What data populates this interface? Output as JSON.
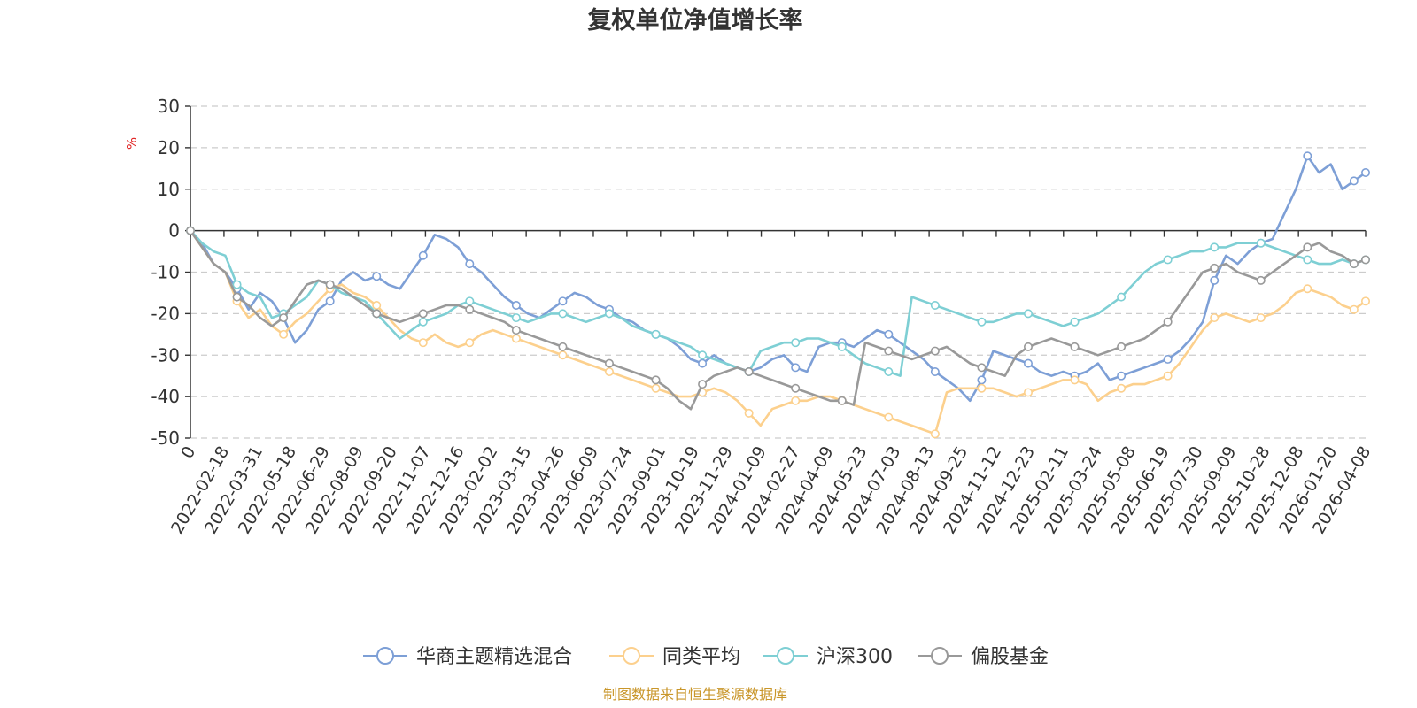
{
  "chart_data": {
    "type": "line",
    "title": "复权单位净值增长率",
    "ylabel": "%",
    "ylim": [
      -50,
      30
    ],
    "yticks": [
      30,
      20,
      10,
      0,
      -10,
      -20,
      -30,
      -40,
      -50
    ],
    "x_tick_labels": [
      "0",
      "2022-02-18",
      "2022-03-31",
      "2022-05-18",
      "2022-06-29",
      "2022-08-09",
      "2022-09-20",
      "2022-11-07",
      "2022-12-16",
      "2023-02-02",
      "2023-03-15",
      "2023-04-26",
      "2023-06-09",
      "2023-07-24",
      "2023-09-01",
      "2023-10-19",
      "2023-11-29",
      "2024-01-09",
      "2024-02-27",
      "2024-04-09",
      "2024-05-23",
      "2024-07-03",
      "2024-08-13",
      "2024-09-25",
      "2024-11-12",
      "2024-12-23",
      "2025-02-11",
      "2025-03-24",
      "2025-05-08",
      "2025-06-19",
      "2025-07-30",
      "2025-09-09",
      "2025-10-28",
      "2025-12-08",
      "2026-01-20",
      "2026-04-08"
    ],
    "grid": true,
    "legend_position": "bottom",
    "source_note": "制图数据来自恒生聚源数据库",
    "series": [
      {
        "name": "华商主题精选混合",
        "color": "#7d9fd6",
        "values": [
          0,
          -3,
          -8,
          -10,
          -14,
          -19,
          -15,
          -17,
          -21,
          -27,
          -24,
          -19,
          -17,
          -12,
          -10,
          -12,
          -11,
          -13,
          -14,
          -10,
          -6,
          -1,
          -2,
          -4,
          -8,
          -10,
          -13,
          -16,
          -18,
          -20,
          -21,
          -19,
          -17,
          -15,
          -16,
          -18,
          -19,
          -21,
          -22,
          -24,
          -25,
          -26,
          -28,
          -31,
          -32,
          -30,
          -32,
          -33,
          -34,
          -33,
          -31,
          -30,
          -33,
          -34,
          -28,
          -27,
          -27,
          -28,
          -26,
          -24,
          -25,
          -27,
          -29,
          -31,
          -34,
          -36,
          -38,
          -41,
          -36,
          -29,
          -30,
          -31,
          -32,
          -34,
          -35,
          -34,
          -35,
          -34,
          -32,
          -36,
          -35,
          -34,
          -33,
          -32,
          -31,
          -29,
          -26,
          -22,
          -12,
          -6,
          -8,
          -5,
          -3,
          -2,
          4,
          10,
          18,
          14,
          16,
          10,
          12,
          14
        ]
      },
      {
        "name": "同类平均",
        "color": "#fcd08d",
        "values": [
          0,
          -4,
          -8,
          -10,
          -17,
          -21,
          -19,
          -23,
          -25,
          -22,
          -20,
          -17,
          -14,
          -13,
          -15,
          -16,
          -18,
          -21,
          -24,
          -26,
          -27,
          -25,
          -27,
          -28,
          -27,
          -25,
          -24,
          -25,
          -26,
          -27,
          -28,
          -29,
          -30,
          -31,
          -32,
          -33,
          -34,
          -35,
          -36,
          -37,
          -38,
          -39,
          -40,
          -40,
          -39,
          -38,
          -39,
          -41,
          -44,
          -47,
          -43,
          -42,
          -41,
          -41,
          -40,
          -40,
          -41,
          -42,
          -43,
          -44,
          -45,
          -46,
          -47,
          -48,
          -49,
          -39,
          -38,
          -38,
          -38,
          -38,
          -39,
          -40,
          -39,
          -38,
          -37,
          -36,
          -36,
          -37,
          -41,
          -39,
          -38,
          -37,
          -37,
          -36,
          -35,
          -32,
          -28,
          -24,
          -21,
          -20,
          -21,
          -22,
          -21,
          -20,
          -18,
          -15,
          -14,
          -15,
          -16,
          -18,
          -19,
          -17
        ]
      },
      {
        "name": "沪深300",
        "color": "#7ecfd4",
        "values": [
          0,
          -3,
          -5,
          -6,
          -13,
          -15,
          -16,
          -21,
          -20,
          -18,
          -16,
          -12,
          -13,
          -15,
          -16,
          -17,
          -20,
          -23,
          -26,
          -24,
          -22,
          -21,
          -20,
          -18,
          -17,
          -18,
          -19,
          -20,
          -21,
          -22,
          -21,
          -20,
          -20,
          -21,
          -22,
          -21,
          -20,
          -21,
          -23,
          -24,
          -25,
          -26,
          -27,
          -28,
          -30,
          -31,
          -32,
          -33,
          -34,
          -29,
          -28,
          -27,
          -27,
          -26,
          -26,
          -27,
          -28,
          -30,
          -32,
          -33,
          -34,
          -35,
          -16,
          -17,
          -18,
          -19,
          -20,
          -21,
          -22,
          -22,
          -21,
          -20,
          -20,
          -21,
          -22,
          -23,
          -22,
          -21,
          -20,
          -18,
          -16,
          -13,
          -10,
          -8,
          -7,
          -6,
          -5,
          -5,
          -4,
          -4,
          -3,
          -3,
          -3,
          -4,
          -5,
          -6,
          -7,
          -8,
          -8,
          -7,
          -8,
          -7
        ]
      },
      {
        "name": "偏股基金",
        "color": "#999999",
        "values": [
          0,
          -4,
          -8,
          -10,
          -16,
          -18,
          -21,
          -23,
          -21,
          -17,
          -13,
          -12,
          -13,
          -14,
          -16,
          -18,
          -20,
          -21,
          -22,
          -21,
          -20,
          -19,
          -18,
          -18,
          -19,
          -20,
          -21,
          -22,
          -24,
          -25,
          -26,
          -27,
          -28,
          -29,
          -30,
          -31,
          -32,
          -33,
          -34,
          -35,
          -36,
          -38,
          -41,
          -43,
          -37,
          -35,
          -34,
          -33,
          -34,
          -35,
          -36,
          -37,
          -38,
          -39,
          -40,
          -41,
          -41,
          -42,
          -27,
          -28,
          -29,
          -30,
          -31,
          -30,
          -29,
          -28,
          -30,
          -32,
          -33,
          -34,
          -35,
          -30,
          -28,
          -27,
          -26,
          -27,
          -28,
          -29,
          -30,
          -29,
          -28,
          -27,
          -26,
          -24,
          -22,
          -18,
          -14,
          -10,
          -9,
          -8,
          -10,
          -11,
          -12,
          -10,
          -8,
          -6,
          -4,
          -3,
          -5,
          -6,
          -8,
          -7
        ]
      }
    ]
  }
}
